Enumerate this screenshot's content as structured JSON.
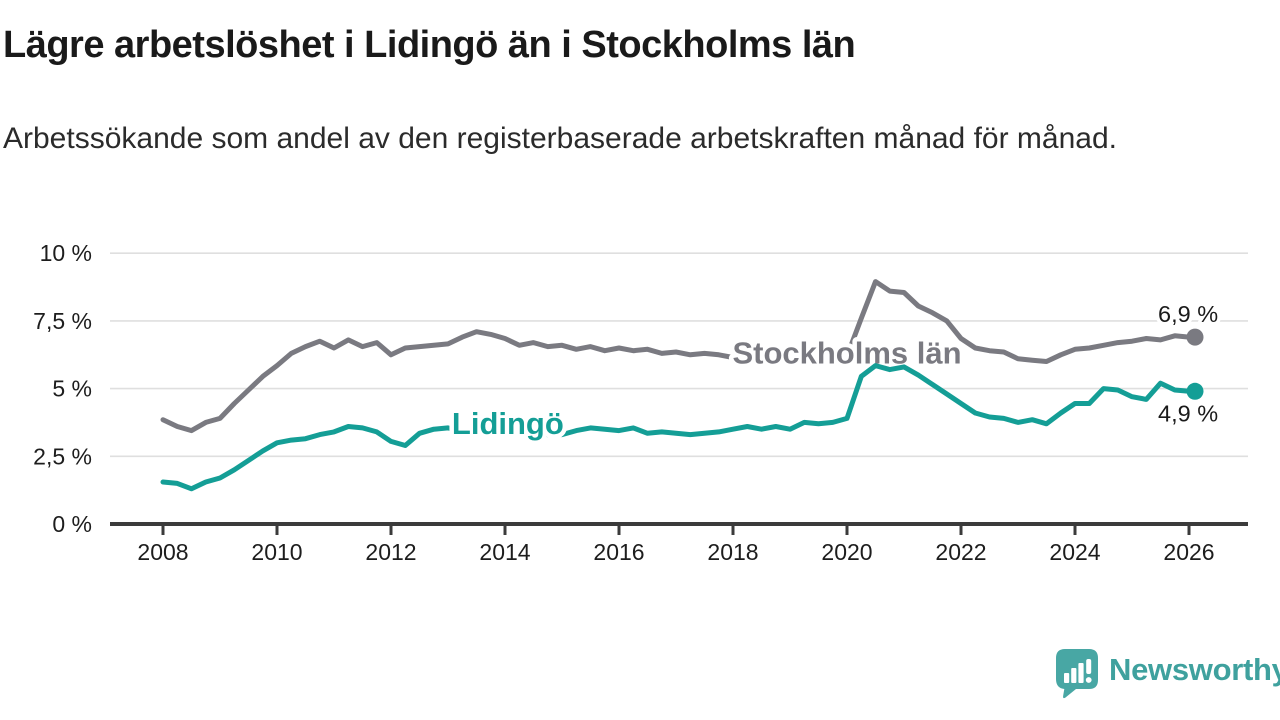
{
  "header": {
    "title": "Lägre arbetslöshet i Lidingö än i Stockholms län",
    "subtitle": "Arbetssökande som andel av den registerbaserade arbetskraften månad för månad."
  },
  "footer": {
    "logo_text": "Newsworthy"
  },
  "colors": {
    "stockholm_line": "#7a7a81",
    "lidingo_line": "#149e96",
    "grid": "#dfdfdf",
    "axis": "#3b3b3b",
    "axis_text": "#1d1d1d",
    "end_label_text": "#1a1a1a",
    "logo_icon": "#48a7a4",
    "logo_text": "#3fa19e"
  },
  "chart_data": {
    "type": "line",
    "title": "Lägre arbetslöshet i Lidingö än i Stockholms län",
    "xlabel": "",
    "ylabel": "Arbetssökande som andel av den registerbaserade arbetskraften",
    "grid": true,
    "legend_position": "inline-labels",
    "x_start": 2008,
    "x_step": 0.25,
    "xlim": [
      2007.07,
      2027.03
    ],
    "ylim": [
      0,
      10
    ],
    "x_ticks": [
      2008,
      2010,
      2012,
      2014,
      2016,
      2018,
      2020,
      2022,
      2024,
      2026
    ],
    "y_ticks": [
      {
        "value": 0,
        "label": "0 %"
      },
      {
        "value": 2.5,
        "label": "2,5 %"
      },
      {
        "value": 5,
        "label": "5 %"
      },
      {
        "value": 7.5,
        "label": "7,5 %"
      },
      {
        "value": 10,
        "label": "10 %"
      }
    ],
    "series": [
      {
        "name": "Stockholms län",
        "slug": "stockholms-lan",
        "color": "#7a7a81",
        "end_label": "6,9 %",
        "end_value": 6.9,
        "end_label_side": "above",
        "label_anchor": {
          "year": 2020.0,
          "value": 6.33
        },
        "values": [
          3.85,
          3.6,
          3.45,
          3.75,
          3.9,
          4.45,
          4.95,
          5.45,
          5.85,
          6.3,
          6.55,
          6.75,
          6.5,
          6.8,
          6.55,
          6.7,
          6.25,
          6.5,
          6.55,
          6.6,
          6.65,
          6.9,
          7.1,
          7.0,
          6.85,
          6.6,
          6.7,
          6.55,
          6.6,
          6.45,
          6.55,
          6.4,
          6.5,
          6.4,
          6.45,
          6.3,
          6.35,
          6.25,
          6.3,
          6.25,
          6.15,
          6.2,
          6.1,
          6.2,
          6.1,
          6.15,
          6.05,
          6.15,
          6.2,
          7.6,
          8.95,
          8.6,
          8.55,
          8.05,
          7.8,
          7.5,
          6.85,
          6.5,
          6.4,
          6.35,
          6.1,
          6.05,
          6.0,
          6.25,
          6.45,
          6.5,
          6.6,
          6.7,
          6.75,
          6.85,
          6.8,
          6.95,
          6.9
        ]
      },
      {
        "name": "Lidingö",
        "slug": "lidingo",
        "color": "#149e96",
        "end_label": "4,9 %",
        "end_value": 4.9,
        "end_label_side": "below",
        "label_anchor": {
          "year": 2014.05,
          "value": 3.73
        },
        "values": [
          1.55,
          1.5,
          1.3,
          1.55,
          1.7,
          2.0,
          2.35,
          2.7,
          3.0,
          3.1,
          3.15,
          3.3,
          3.4,
          3.6,
          3.55,
          3.4,
          3.05,
          2.9,
          3.35,
          3.5,
          3.55,
          3.4,
          3.45,
          3.35,
          3.4,
          3.45,
          3.35,
          3.3,
          3.3,
          3.45,
          3.55,
          3.5,
          3.45,
          3.55,
          3.35,
          3.4,
          3.35,
          3.3,
          3.35,
          3.4,
          3.5,
          3.6,
          3.5,
          3.6,
          3.5,
          3.75,
          3.7,
          3.75,
          3.9,
          5.45,
          5.85,
          5.7,
          5.8,
          5.5,
          5.15,
          4.8,
          4.45,
          4.1,
          3.95,
          3.9,
          3.75,
          3.85,
          3.7,
          4.1,
          4.45,
          4.45,
          5.0,
          4.95,
          4.7,
          4.6,
          5.2,
          4.95,
          4.9
        ]
      }
    ]
  }
}
